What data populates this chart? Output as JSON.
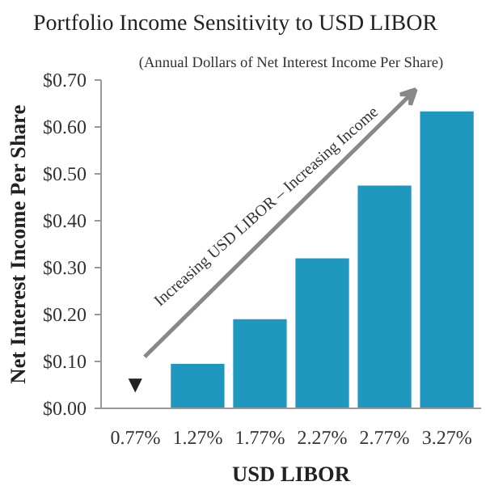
{
  "chart_data": {
    "type": "bar",
    "title": "Portfolio Income Sensitivity to USD LIBOR",
    "subtitle": "(Annual Dollars of Net Interest Income Per Share)",
    "xlabel": "USD LIBOR",
    "ylabel": "Net Interest Income Per Share",
    "categories": [
      "0.77%",
      "1.27%",
      "1.77%",
      "2.27%",
      "2.77%",
      "3.27%"
    ],
    "values": [
      null,
      0.095,
      0.19,
      0.32,
      0.475,
      0.633
    ],
    "color": "#1f97bf",
    "ylim": [
      0,
      0.7
    ],
    "yticks": [
      {
        "value": 0,
        "label": "$0.00"
      },
      {
        "value": 0.1,
        "label": "$0.10"
      },
      {
        "value": 0.2,
        "label": "$0.20"
      },
      {
        "value": 0.3,
        "label": "$0.30"
      },
      {
        "value": 0.4,
        "label": "$0.40"
      },
      {
        "value": 0.5,
        "label": "$0.50"
      },
      {
        "value": 0.6,
        "label": "$0.60"
      },
      {
        "value": 0.7,
        "label": "$0.70"
      }
    ],
    "grid": false,
    "annotations": [
      "▼",
      "Increasing USD LIBOR – Increasing Income"
    ]
  }
}
